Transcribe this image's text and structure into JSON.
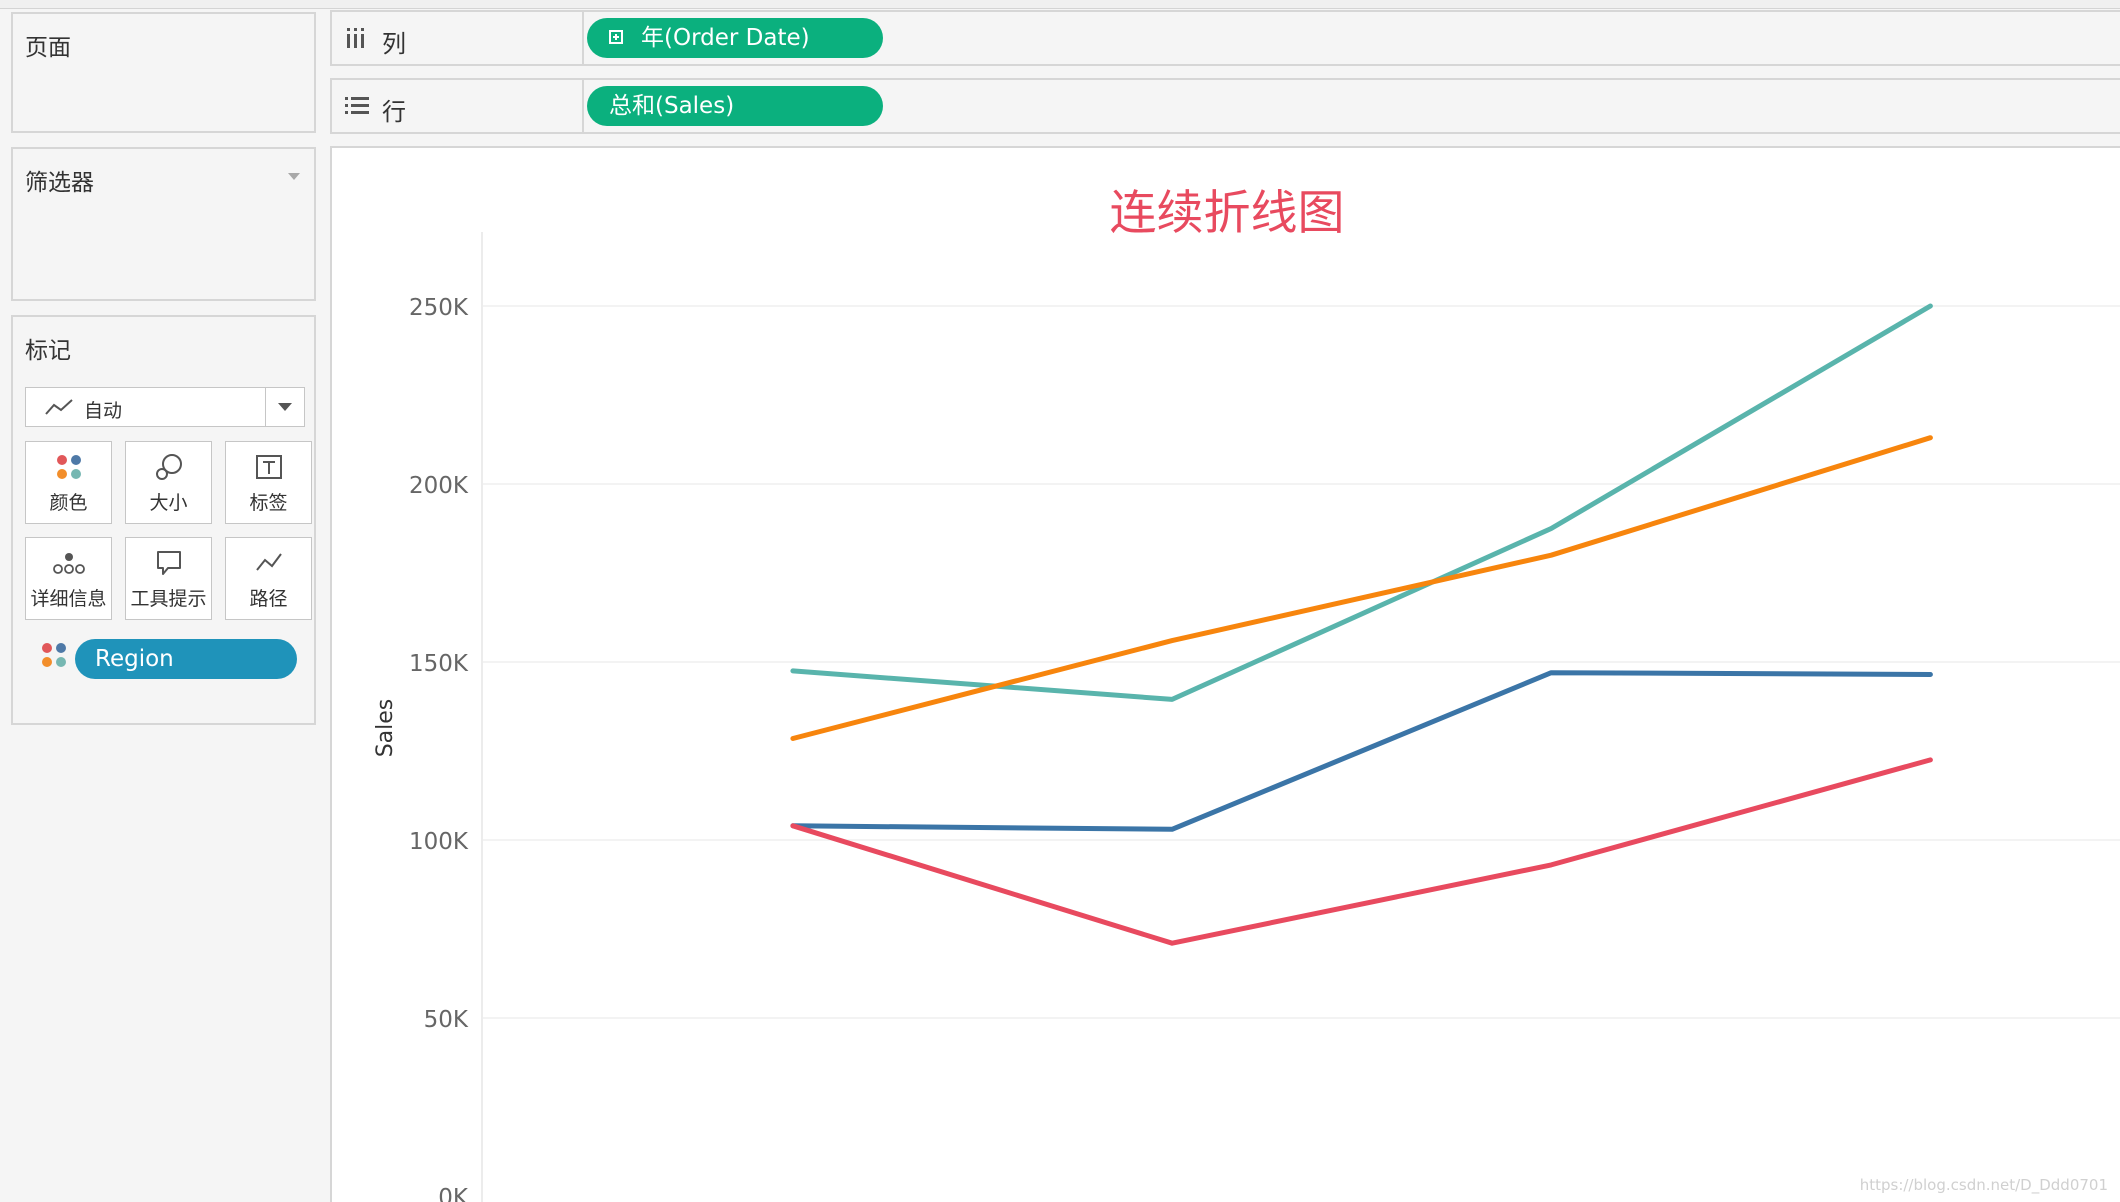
{
  "sidebar": {
    "pages_title": "页面",
    "filters_title": "筛选器",
    "marks_title": "标记",
    "mark_type": "自动",
    "mark_buttons": [
      {
        "label": "颜色",
        "icon": "color-dots-icon"
      },
      {
        "label": "大小",
        "icon": "size-icon"
      },
      {
        "label": "标签",
        "icon": "text-label-icon"
      },
      {
        "label": "详细信息",
        "icon": "detail-icon"
      },
      {
        "label": "工具提示",
        "icon": "tooltip-icon"
      },
      {
        "label": "路径",
        "icon": "path-icon"
      }
    ],
    "color_field": "Region",
    "dot_colors": [
      "#e15759",
      "#4e79a7",
      "#f28e2b",
      "#76b7b2"
    ]
  },
  "shelves": {
    "columns_label": "列",
    "columns_pill": "年(Order Date)",
    "rows_label": "行",
    "rows_pill": "总和(Sales)"
  },
  "chart_data": {
    "type": "line",
    "title": "连续折线图",
    "xlabel": "",
    "ylabel": "Sales",
    "ylim": [
      0,
      250000
    ],
    "yticks": [
      {
        "value": 0,
        "label": "0K"
      },
      {
        "value": 50000,
        "label": "50K"
      },
      {
        "value": 100000,
        "label": "100K"
      },
      {
        "value": 150000,
        "label": "150K"
      },
      {
        "value": 200000,
        "label": "200K"
      },
      {
        "value": 250000,
        "label": "250K"
      }
    ],
    "x": [
      1,
      2,
      3,
      4
    ],
    "xlim": [
      0.18,
      4.5
    ],
    "grid": true,
    "series": [
      {
        "color": "#59b4ac",
        "values": [
          147500,
          139500,
          187500,
          250000
        ]
      },
      {
        "color": "#f7850d",
        "values": [
          128500,
          156000,
          180000,
          213000
        ]
      },
      {
        "color": "#3b75a7",
        "values": [
          104000,
          103000,
          147000,
          146500
        ]
      },
      {
        "color": "#e84a5f",
        "values": [
          104000,
          71000,
          93000,
          122500
        ]
      }
    ]
  },
  "watermark": "https://blog.csdn.net/D_Ddd0701"
}
